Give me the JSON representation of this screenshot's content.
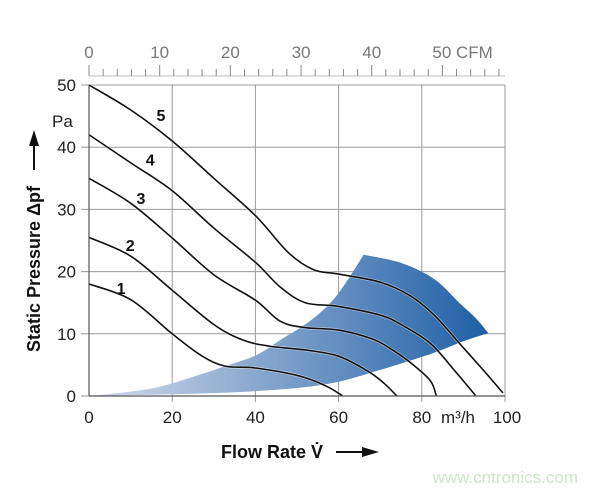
{
  "chart_data": {
    "type": "line",
    "xlabel": "Flow Rate V̇",
    "ylabel": "Static Pressure Δpf",
    "x_unit": "m³/h",
    "y_unit": "Pa",
    "xlim": [
      0,
      100
    ],
    "ylim": [
      0,
      50
    ],
    "x_ticks": [
      "0",
      "20",
      "40",
      "60",
      "80",
      "100"
    ],
    "x_tick_values": [
      0,
      20,
      40,
      60,
      80,
      100
    ],
    "y_ticks": [
      "0",
      "10",
      "20",
      "30",
      "40",
      "50"
    ],
    "y_tick_values": [
      0,
      10,
      20,
      30,
      40,
      50
    ],
    "grid": true,
    "top_axis": {
      "unit": "CFM",
      "labels": [
        "0",
        "10",
        "20",
        "30",
        "40",
        "50 CFM"
      ],
      "label_values": [
        0,
        10,
        20,
        30,
        40,
        50
      ],
      "minor_tick_step": 2,
      "max": 58,
      "m3h_per_cfm": 1.699,
      "color": "#777777"
    },
    "series": [
      {
        "name": "1",
        "label_at": [
          7.7,
          17.4
        ],
        "points": [
          [
            0,
            18
          ],
          [
            10,
            15.5
          ],
          [
            20,
            10
          ],
          [
            27,
            6.5
          ],
          [
            32.7,
            4.8
          ],
          [
            40,
            4.5
          ],
          [
            50.7,
            3.2
          ],
          [
            57,
            1.6
          ],
          [
            61,
            0
          ]
        ]
      },
      {
        "name": "2",
        "label_at": [
          9.9,
          24.3
        ],
        "points": [
          [
            0,
            25.5
          ],
          [
            10,
            22.5
          ],
          [
            20,
            17
          ],
          [
            30,
            11.5
          ],
          [
            37,
            9
          ],
          [
            43.5,
            8
          ],
          [
            52,
            7.4
          ],
          [
            60,
            6.4
          ],
          [
            67,
            4
          ],
          [
            71,
            2
          ],
          [
            74,
            0
          ]
        ]
      },
      {
        "name": "3",
        "label_at": [
          12.5,
          31.8
        ],
        "points": [
          [
            0,
            35
          ],
          [
            10,
            31
          ],
          [
            20,
            25.4
          ],
          [
            30,
            19.5
          ],
          [
            40,
            15.4
          ],
          [
            46,
            12
          ],
          [
            52,
            11
          ],
          [
            60,
            10.6
          ],
          [
            68,
            9.2
          ],
          [
            72,
            7.8
          ],
          [
            77,
            5.5
          ],
          [
            82,
            2.5
          ],
          [
            83.5,
            0
          ]
        ]
      },
      {
        "name": "4",
        "label_at": [
          14.7,
          38
        ],
        "points": [
          [
            0,
            42
          ],
          [
            10,
            37.5
          ],
          [
            20,
            33
          ],
          [
            30,
            27
          ],
          [
            40,
            21.5
          ],
          [
            46,
            17.5
          ],
          [
            52,
            15
          ],
          [
            60,
            14.4
          ],
          [
            70,
            13
          ],
          [
            75,
            11.5
          ],
          [
            82,
            8.5
          ],
          [
            88,
            4
          ],
          [
            93,
            0
          ]
        ]
      },
      {
        "name": "5",
        "label_at": [
          17.3,
          45.2
        ],
        "points": [
          [
            0,
            50
          ],
          [
            10,
            46
          ],
          [
            20,
            41
          ],
          [
            30,
            35
          ],
          [
            40,
            29
          ],
          [
            48,
            23
          ],
          [
            54,
            20.3
          ],
          [
            60,
            19.6
          ],
          [
            70,
            18.3
          ],
          [
            77,
            16.2
          ],
          [
            83,
            13
          ],
          [
            89,
            8.5
          ],
          [
            95,
            4
          ],
          [
            99.5,
            0.5
          ]
        ]
      }
    ],
    "operating_region": {
      "color_light": "#d6dcec",
      "color_dark": "#1e5fa5",
      "upper_edge": [
        [
          0,
          0
        ],
        [
          15,
          1.2
        ],
        [
          26,
          3.3
        ],
        [
          32.7,
          4.8
        ],
        [
          40,
          6.5
        ],
        [
          46,
          9
        ],
        [
          53,
          12
        ],
        [
          58.6,
          15.4
        ],
        [
          63,
          19.5
        ],
        [
          66,
          22.7
        ]
      ],
      "outer_arc": [
        [
          66,
          22.7
        ],
        [
          75,
          21.4
        ],
        [
          83,
          18.8
        ],
        [
          89,
          15
        ],
        [
          93,
          12.5
        ],
        [
          96,
          10.1
        ]
      ],
      "lower_edge": [
        [
          96,
          10.1
        ],
        [
          90,
          8.8
        ],
        [
          82.7,
          6.9
        ],
        [
          70,
          4.2
        ],
        [
          58.6,
          2.1
        ],
        [
          45,
          1
        ],
        [
          26.7,
          0.4
        ],
        [
          0,
          0
        ]
      ]
    },
    "curve_color": "#111111",
    "grid_color": "#9a9a9a"
  },
  "watermark": "www.cntronics.com"
}
